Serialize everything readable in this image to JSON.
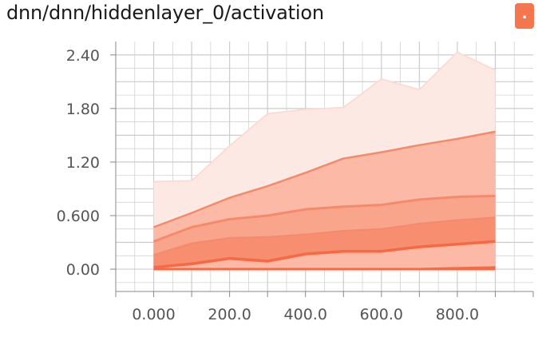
{
  "title": "dnn/dnn/hiddenlayer_0/activation",
  "expand_button_label": ".",
  "colors": {
    "band_outer": "#fde9e3",
    "band_2": "#fbb9a6",
    "band_3": "#f9a58c",
    "band_4": "#f78e70",
    "line_outer": "#fcdcd2",
    "line_mid": "#f58a6b",
    "line_median": "#f36a45",
    "grid": "#cccccc"
  },
  "chart_data": {
    "type": "area",
    "title": "",
    "xlabel": "",
    "ylabel": "",
    "xlim": [
      -100,
      1000
    ],
    "ylim": [
      -0.25,
      2.55
    ],
    "x_ticks": [
      0,
      200,
      400,
      600,
      800
    ],
    "x_tick_labels": [
      "0.000",
      "200.0",
      "400.0",
      "600.0",
      "800.0"
    ],
    "y_ticks": [
      0,
      0.6,
      1.2,
      1.8,
      2.4
    ],
    "y_tick_labels": [
      "0.00",
      "0.600",
      "1.20",
      "1.80",
      "2.40"
    ],
    "x": [
      0,
      100,
      200,
      300,
      400,
      500,
      600,
      700,
      800,
      900
    ],
    "series": [
      {
        "values": [
          0.0,
          0.0,
          0.0,
          0.0,
          0.0,
          0.0,
          0.0,
          0.0,
          0.0,
          0.0
        ]
      },
      {
        "values": [
          0.0,
          0.0,
          0.0,
          0.0,
          0.0,
          0.0,
          0.0,
          0.0,
          0.01,
          0.02
        ]
      },
      {
        "values": [
          0.02,
          0.06,
          0.12,
          0.09,
          0.17,
          0.2,
          0.2,
          0.25,
          0.28,
          0.31
        ]
      },
      {
        "values": [
          0.16,
          0.29,
          0.35,
          0.36,
          0.39,
          0.43,
          0.45,
          0.51,
          0.55,
          0.58
        ]
      },
      {
        "values": [
          0.31,
          0.47,
          0.56,
          0.6,
          0.67,
          0.7,
          0.72,
          0.78,
          0.81,
          0.82
        ]
      },
      {
        "values": [
          0.47,
          0.63,
          0.8,
          0.93,
          1.08,
          1.24,
          1.31,
          1.39,
          1.46,
          1.54
        ]
      },
      {
        "values": [
          0.98,
          0.99,
          1.38,
          1.74,
          1.79,
          1.81,
          2.13,
          2.01,
          2.43,
          2.23
        ]
      }
    ]
  }
}
